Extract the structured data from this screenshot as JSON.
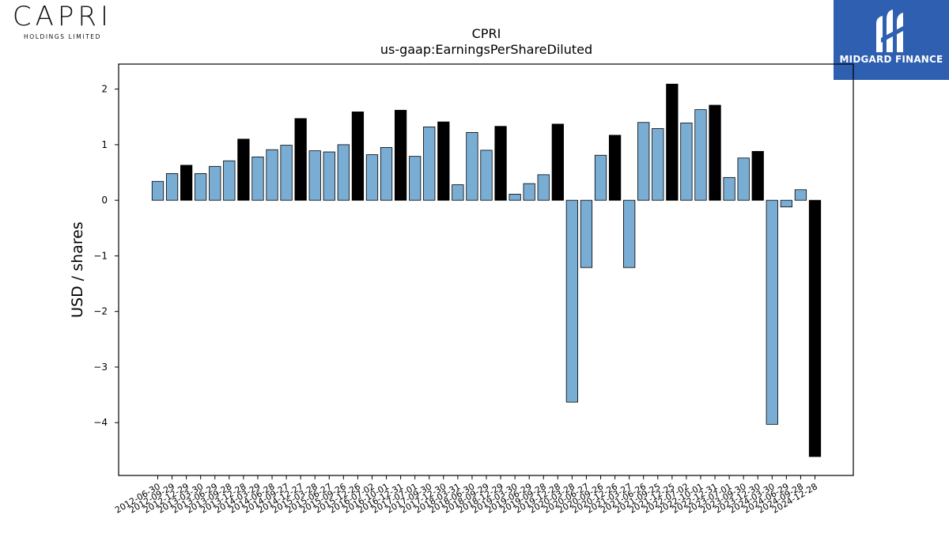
{
  "logos": {
    "left": {
      "name": "CAPRI",
      "subtitle": "HOLDINGS LIMITED"
    },
    "right": {
      "name": "MIDGARD FINANCE",
      "background": "#2e5fb0"
    }
  },
  "chart_data": {
    "type": "bar",
    "title": "CPRI",
    "subtitle": "us-gaap:EarningsPerShareDiluted",
    "xlabel": "",
    "ylabel": "USD / shares",
    "ylim": [
      -4.95,
      2.45
    ],
    "yticks": [
      2,
      1,
      0,
      -1,
      -2,
      -3,
      -4
    ],
    "ytick_labels": [
      "2",
      "1",
      "0",
      "−1",
      "−2",
      "−3",
      "−4"
    ],
    "grid": false,
    "colors": {
      "quarter": "#7aadd4",
      "annual": "#000000",
      "edge": "#000000"
    },
    "series": [
      {
        "values": [
          0.34,
          0.48,
          0.63,
          0.48,
          0.61,
          0.71,
          1.1,
          0.78,
          0.91,
          0.99,
          1.47,
          0.89,
          0.87,
          1.0,
          1.59,
          0.82,
          0.95,
          1.62,
          0.79,
          1.32,
          1.41,
          0.28,
          1.22,
          0.9,
          1.33,
          0.11,
          0.3,
          0.46,
          1.37,
          -3.63,
          -1.21,
          0.81,
          1.17,
          -1.21,
          1.4,
          1.29,
          2.09,
          1.39,
          1.63,
          1.71,
          0.41,
          0.76,
          0.88,
          -4.03,
          -0.12,
          0.19,
          -4.61
        ],
        "annual": [
          false,
          false,
          true,
          false,
          false,
          false,
          true,
          false,
          false,
          false,
          true,
          false,
          false,
          false,
          true,
          false,
          false,
          true,
          false,
          false,
          true,
          false,
          false,
          false,
          true,
          false,
          false,
          false,
          true,
          false,
          false,
          false,
          true,
          false,
          false,
          false,
          true,
          false,
          false,
          true,
          false,
          false,
          true,
          false,
          false,
          false,
          true
        ]
      }
    ],
    "categories": [
      "2012-06-30",
      "2012-09-29",
      "2012-12-29",
      "2013-03-30",
      "2013-06-29",
      "2013-09-28",
      "2013-12-28",
      "2014-03-29",
      "2014-06-28",
      "2014-09-27",
      "2014-12-27",
      "2015-03-28",
      "2015-06-27",
      "2015-09-26",
      "2015-12-26",
      "2016-07-02",
      "2016-10-01",
      "2016-12-31",
      "2017-07-01",
      "2017-09-30",
      "2017-12-30",
      "2018-03-31",
      "2018-06-30",
      "2018-09-29",
      "2018-12-29",
      "2019-03-30",
      "2019-06-29",
      "2019-09-28",
      "2019-12-28",
      "2020-03-28",
      "2020-06-27",
      "2020-09-26",
      "2020-12-26",
      "2021-03-27",
      "2021-06-26",
      "2021-09-25",
      "2021-12-25",
      "2022-07-02",
      "2022-10-01",
      "2022-12-31",
      "2023-07-01",
      "2023-09-30",
      "2023-12-30",
      "2024-03-30",
      "2024-06-29",
      "2024-09-28",
      "2024-12-28"
    ]
  }
}
